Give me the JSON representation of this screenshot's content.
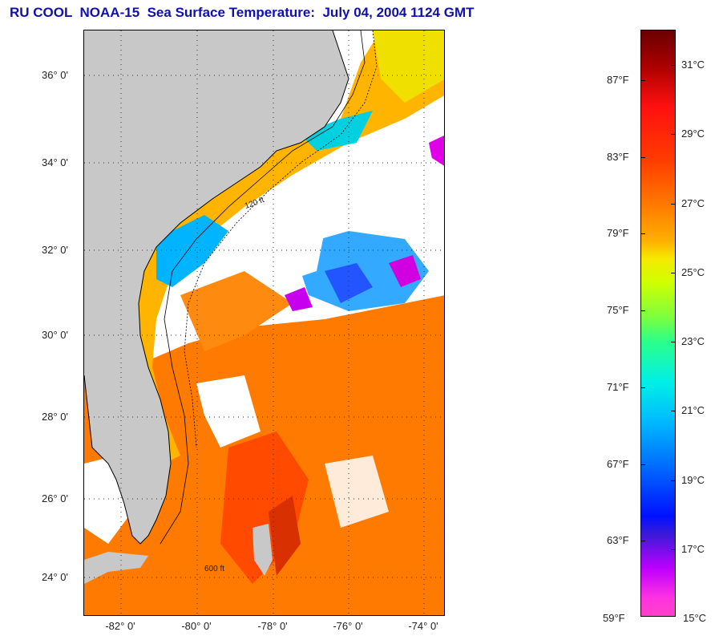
{
  "title": "RU COOL  NOAA-15  Sea Surface Temperature:  July 04, 2004 1124 GMT",
  "map": {
    "lat_labels": [
      "36° 0'",
      "34° 0'",
      "32° 0'",
      "30° 0'",
      "28° 0'",
      "26° 0'",
      "24° 0'"
    ],
    "lon_labels": [
      "-82° 0'",
      "-80° 0'",
      "-78° 0'",
      "-76° 0'",
      "-74° 0'"
    ],
    "depth_contour_labels": [
      "120 ft",
      "600 ft"
    ],
    "colors": {
      "land": "#c8c8c8",
      "cloud": "#ffffff",
      "warm_water": "#ff7a00",
      "gulf_stream": "#ff4a00",
      "shelf_water": "#ffb400",
      "cool_patch": "#00b4ff",
      "cold_patch": "#e000e8"
    }
  },
  "colorbar": {
    "fahrenheit_labels": [
      "87°F",
      "83°F",
      "79°F",
      "75°F",
      "71°F",
      "67°F",
      "63°F",
      "59°F"
    ],
    "celsius_labels": [
      "31°C",
      "29°C",
      "27°C",
      "25°C",
      "23°C",
      "21°C",
      "19°C",
      "17°C",
      "15°C"
    ],
    "fahrenheit_range": [
      59,
      89
    ],
    "celsius_range": [
      15,
      31.7
    ]
  }
}
